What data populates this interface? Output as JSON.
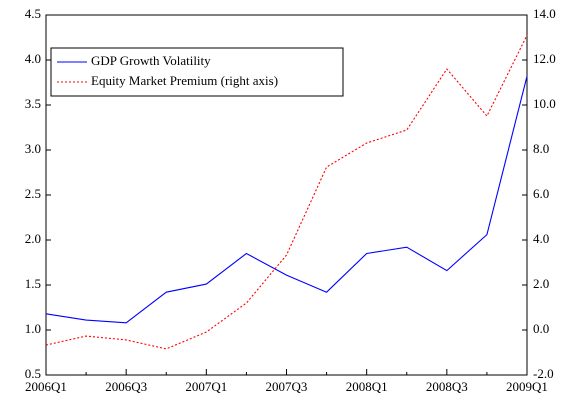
{
  "chart_data": {
    "type": "line",
    "categories": [
      "2006Q1",
      null,
      "2006Q3",
      null,
      "2007Q1",
      null,
      "2007Q3",
      null,
      "2008Q1",
      null,
      "2008Q3",
      null,
      "2009Q1"
    ],
    "series": [
      {
        "name": "GDP Growth Volatility",
        "color": "#0000ff",
        "dash": "solid",
        "values": [
          1.18,
          1.11,
          1.08,
          1.42,
          1.51,
          1.85,
          1.61,
          1.42,
          1.85,
          1.92,
          1.66,
          2.06,
          3.82
        ]
      },
      {
        "name": "Equity Market Premium (right axis)",
        "color": "#ff0000",
        "dash": "dotted",
        "axis": "y2",
        "values": [
          -0.67,
          -0.27,
          -0.44,
          -0.84,
          -0.09,
          1.2,
          3.33,
          7.24,
          8.31,
          8.89,
          11.6,
          9.51,
          13.1
        ]
      }
    ],
    "ylim": [
      0.5,
      4.5
    ],
    "yticks": [
      0.5,
      {
        "value": 1,
        "label": "1.0"
      },
      1.5,
      {
        "value": 2,
        "label": "2.0"
      },
      2.5,
      {
        "value": 3,
        "label": "3.0"
      },
      3.5,
      {
        "value": 4,
        "label": "4.0"
      },
      4.5
    ],
    "y2lim": [
      -2,
      14
    ],
    "y2ticks": [
      {
        "value": -2,
        "label": "-2.0"
      },
      {
        "value": 0,
        "label": "0.0"
      },
      {
        "value": 2,
        "label": "2.0"
      },
      {
        "value": 4,
        "label": "4.0"
      },
      {
        "value": 6,
        "label": "6.0"
      },
      {
        "value": 8,
        "label": "8.0"
      },
      {
        "value": 10,
        "label": "10.0"
      },
      {
        "value": 12,
        "label": "12.0"
      },
      {
        "value": 14,
        "label": "14.0"
      }
    ],
    "legend": "upper left",
    "grid": false
  }
}
